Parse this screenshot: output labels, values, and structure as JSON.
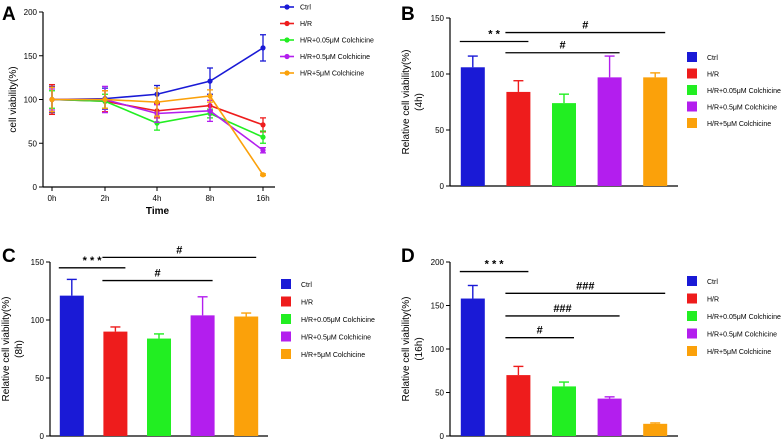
{
  "panels": {
    "A": "A",
    "B": "B",
    "C": "C",
    "D": "D"
  },
  "colors": {
    "Ctrl": "#1a1ad6",
    "H/R": "#ee1c1c",
    "H/R+0.05μM Colchicine": "#22ee22",
    "H/R+0.5μM Colchicine": "#b31eee",
    "H/R+5μM Colchicine": "#fba10a"
  },
  "chart_data": [
    {
      "id": "A",
      "type": "line",
      "title": "",
      "xlabel": "Time",
      "ylabel": "cell viability(%)",
      "categories": [
        "0h",
        "2h",
        "4h",
        "8h",
        "16h"
      ],
      "ylim": [
        0,
        200
      ],
      "yticks": [
        0,
        50,
        100,
        150,
        200
      ],
      "legend_position": "right",
      "series": [
        {
          "name": "Ctrl",
          "values": [
            100,
            101,
            106,
            121,
            159
          ],
          "errors": [
            15,
            12,
            10,
            15,
            15
          ]
        },
        {
          "name": "H/R",
          "values": [
            100,
            98,
            87,
            93,
            71
          ],
          "errors": [
            17,
            12,
            8,
            6,
            8
          ]
        },
        {
          "name": "H/R+0.05μM Colchicine",
          "values": [
            100,
            98,
            73,
            84,
            57
          ],
          "errors": [
            10,
            8,
            8,
            5,
            7
          ]
        },
        {
          "name": "H/R+0.5μM Colchicine",
          "values": [
            100,
            100,
            84,
            87,
            42
          ],
          "errors": [
            12,
            15,
            10,
            12,
            3
          ]
        },
        {
          "name": "H/R+5μM Colchicine",
          "values": [
            100,
            100,
            97,
            104,
            14
          ],
          "errors": [
            14,
            10,
            16,
            7,
            1
          ]
        }
      ]
    },
    {
      "id": "B",
      "type": "bar",
      "title": "",
      "xlabel": "",
      "ylabel": "Relative cell viability(%)",
      "ylabel2": "(4h)",
      "categories": [
        "Ctrl",
        "H/R",
        "H/R+0.05μM Colchicine",
        "H/R+0.5μM Colchicine",
        "H/R+5μM Colchicine"
      ],
      "values": [
        106,
        84,
        74,
        97,
        97
      ],
      "errors": [
        10,
        10,
        8,
        19,
        4
      ],
      "ylim": [
        0,
        150
      ],
      "yticks": [
        0,
        50,
        100,
        150
      ],
      "legend_position": "right",
      "annotations": [
        {
          "text": "* *",
          "from": "Ctrl",
          "to": "H/R",
          "level": 129
        },
        {
          "text": "#",
          "from": "H/R",
          "to": "H/R+5μM Colchicine",
          "level": 137
        },
        {
          "text": "#",
          "from": "H/R",
          "to": "H/R+0.5μM Colchicine",
          "level": 119
        }
      ]
    },
    {
      "id": "C",
      "type": "bar",
      "title": "",
      "xlabel": "",
      "ylabel": "Relative cell viability(%)",
      "ylabel2": "(8h)",
      "categories": [
        "Ctrl",
        "H/R",
        "H/R+0.05μM Colchicine",
        "H/R+0.5μM Colchicine",
        "H/R+5μM Colchicine"
      ],
      "values": [
        121,
        90,
        84,
        104,
        103
      ],
      "errors": [
        14,
        4,
        4,
        16,
        3
      ],
      "ylim": [
        0,
        150
      ],
      "yticks": [
        0,
        50,
        100,
        150
      ],
      "legend_position": "right",
      "annotations": [
        {
          "text": "* * *",
          "from": "Ctrl",
          "to": "H/R",
          "level": 145
        },
        {
          "text": "#",
          "from": "H/R",
          "to": "H/R+5μM Colchicine",
          "level": 154
        },
        {
          "text": "#",
          "from": "H/R",
          "to": "H/R+0.5μM Colchicine",
          "level": 134
        }
      ]
    },
    {
      "id": "D",
      "type": "bar",
      "title": "",
      "xlabel": "",
      "ylabel": "Relative cell viability(%)",
      "ylabel2": "(16h)",
      "categories": [
        "Ctrl",
        "H/R",
        "H/R+0.05μM Colchicine",
        "H/R+0.5μM Colchicine",
        "H/R+5μM Colchicine"
      ],
      "values": [
        158,
        70,
        57,
        43,
        14
      ],
      "errors": [
        15,
        10,
        5,
        2,
        1
      ],
      "ylim": [
        0,
        200
      ],
      "yticks": [
        0,
        50,
        100,
        150,
        200
      ],
      "legend_position": "right",
      "annotations": [
        {
          "text": "* * *",
          "from": "Ctrl",
          "to": "H/R",
          "level": 189
        },
        {
          "text": "###",
          "from": "H/R",
          "to": "H/R+5μM Colchicine",
          "level": 164
        },
        {
          "text": "###",
          "from": "H/R",
          "to": "H/R+0.5μM Colchicine",
          "level": 138
        },
        {
          "text": "#",
          "from": "H/R",
          "to": "H/R+0.05μM Colchicine",
          "level": 113
        }
      ]
    }
  ]
}
